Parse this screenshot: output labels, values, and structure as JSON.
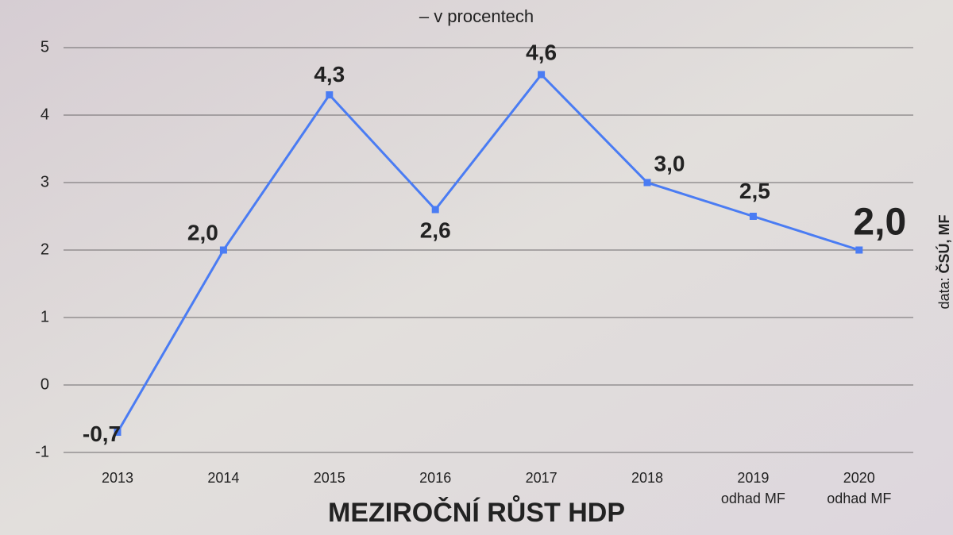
{
  "chart_data": {
    "type": "line",
    "title": "MEZIROČNÍ RŮST HDP",
    "subtitle": "– v procentech",
    "source": {
      "prefix": "data:",
      "text": "ČSÚ, MF"
    },
    "categories": [
      "2013",
      "2014",
      "2015",
      "2016",
      "2017",
      "2018",
      "2019",
      "2020"
    ],
    "category_sublabels": [
      null,
      null,
      null,
      null,
      null,
      null,
      "odhad MF",
      "odhad MF"
    ],
    "series": [
      {
        "name": "Meziroční růst HDP",
        "color": "#4a7cf3",
        "values": [
          -0.7,
          2.0,
          4.3,
          2.6,
          4.6,
          3.0,
          2.5,
          2.0
        ],
        "value_labels": [
          "-0,7",
          "2,0",
          "4,3",
          "2,6",
          "4,6",
          "3,0",
          "2,5",
          "2,0"
        ]
      }
    ],
    "ylim": [
      -1,
      5
    ],
    "yticks": [
      -1,
      0,
      1,
      2,
      3,
      4,
      5
    ],
    "grid": true
  }
}
